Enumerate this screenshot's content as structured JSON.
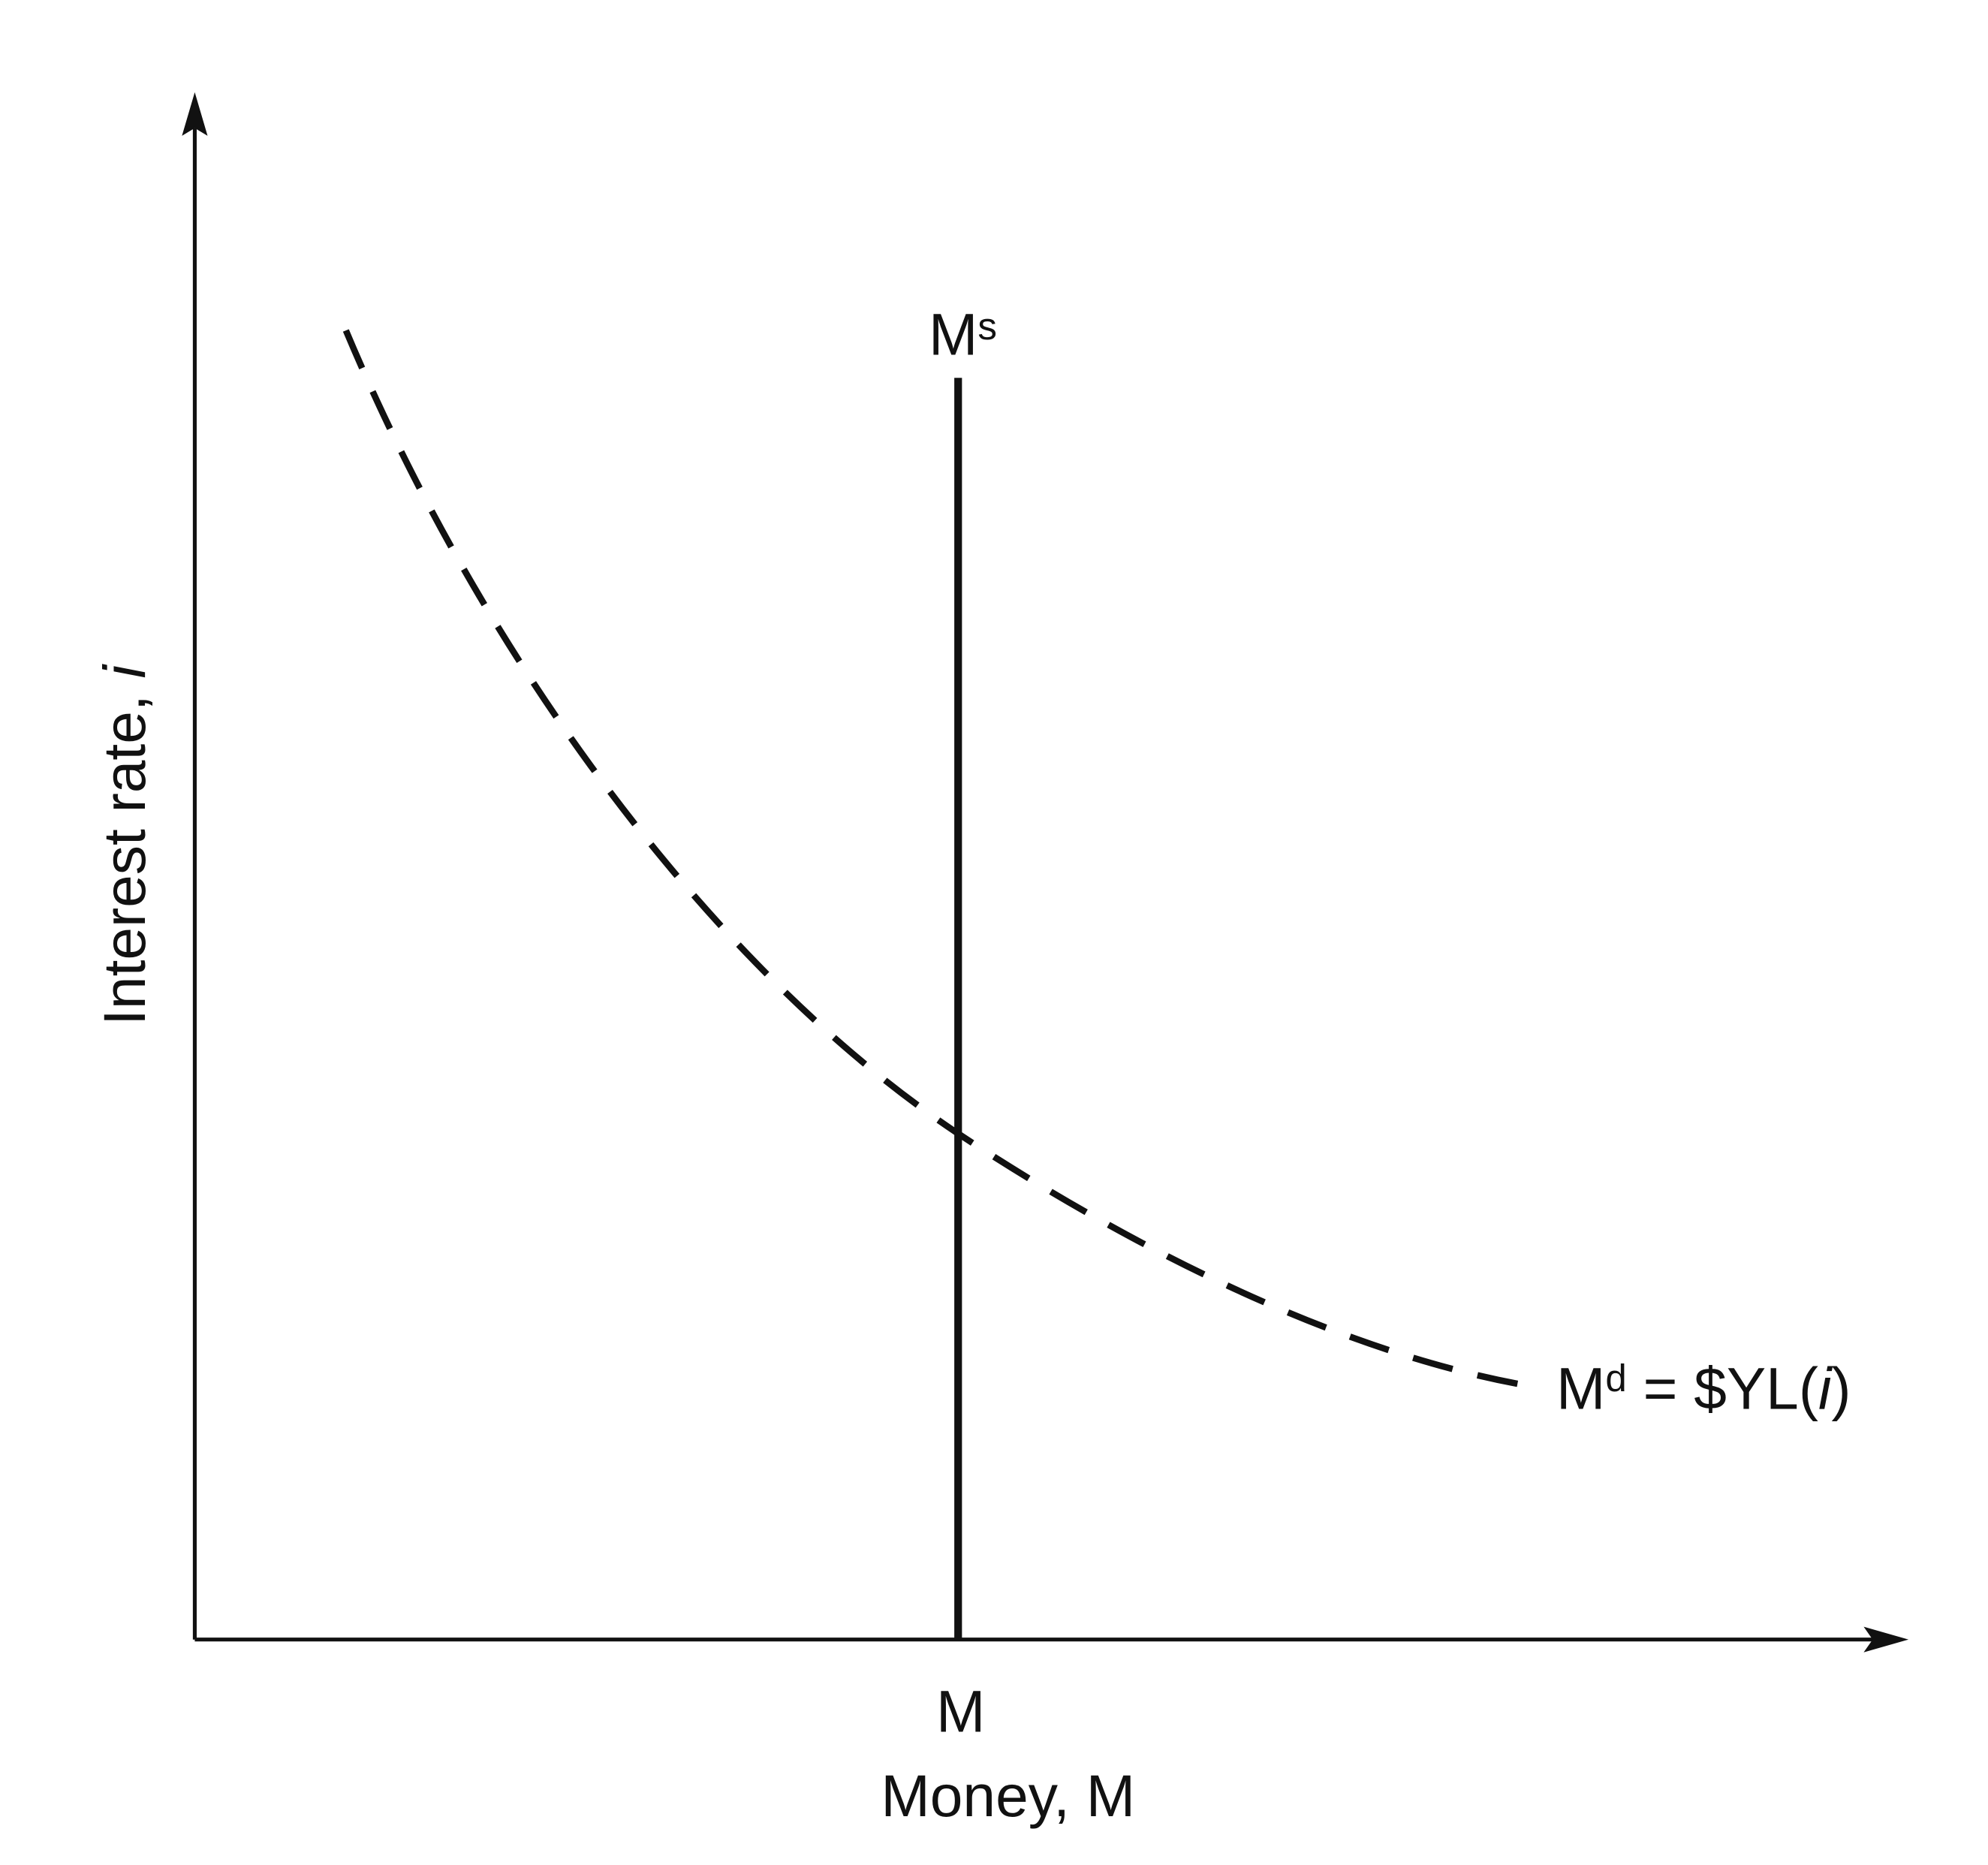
{
  "labels": {
    "y_axis": {
      "text": "Interest rate, ",
      "italic": "i"
    },
    "x_axis": "Money, M",
    "x_marker": "M",
    "supply": {
      "base": "M",
      "sup": "s"
    },
    "demand": {
      "base": "M",
      "sup": "d",
      "text": " = $YL(",
      "italic": "i",
      "close": ")"
    }
  }
}
